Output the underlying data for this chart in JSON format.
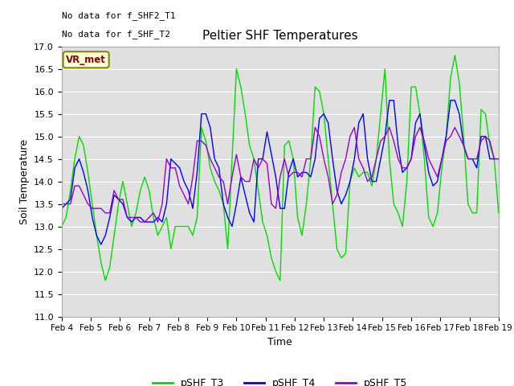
{
  "title": "Peltier SHF Temperatures",
  "xlabel": "Time",
  "ylabel": "Soil Temperature",
  "ylim": [
    11.0,
    17.0
  ],
  "yticks": [
    11.0,
    11.5,
    12.0,
    12.5,
    13.0,
    13.5,
    14.0,
    14.5,
    15.0,
    15.5,
    16.0,
    16.5,
    17.0
  ],
  "xtick_labels": [
    "Feb 4",
    "Feb 5",
    "Feb 6",
    "Feb 7",
    "Feb 8",
    "Feb 9",
    "Feb 10",
    "Feb 11",
    "Feb 12",
    "Feb 13",
    "Feb 14",
    "Feb 15",
    "Feb 16",
    "Feb 17",
    "Feb 18",
    "Feb 19"
  ],
  "no_data_text1": "No data for f_SHF2_T1",
  "no_data_text2": "No data for f_SHF_T2",
  "vr_met_label": "VR_met",
  "legend_labels": [
    "pSHF_T3",
    "pSHF_T4",
    "pSHF_T5"
  ],
  "T3_color": "#00dd00",
  "T4_color": "#0000ff",
  "T5_color": "#9900cc",
  "fig_facecolor": "#ffffff",
  "ax_facecolor": "#e0e0e0",
  "grid_color": "#ffffff",
  "T3_x": [
    0,
    0.15,
    0.3,
    0.45,
    0.6,
    0.75,
    0.9,
    1.05,
    1.2,
    1.35,
    1.5,
    1.65,
    1.8,
    1.95,
    2.1,
    2.25,
    2.4,
    2.55,
    2.7,
    2.85,
    3.0,
    3.15,
    3.3,
    3.45,
    3.6,
    3.75,
    3.9,
    4.05,
    4.2,
    4.35,
    4.5,
    4.65,
    4.8,
    4.95,
    5.1,
    5.25,
    5.4,
    5.55,
    5.7,
    5.85,
    6.0,
    6.15,
    6.3,
    6.45,
    6.6,
    6.75,
    6.9,
    7.05,
    7.2,
    7.35,
    7.5,
    7.65,
    7.8,
    7.95,
    8.1,
    8.25,
    8.4,
    8.55,
    8.7,
    8.85,
    9.0,
    9.15,
    9.3,
    9.45,
    9.6,
    9.75,
    9.9,
    10.05,
    10.2,
    10.35,
    10.5,
    10.65,
    10.8,
    10.95,
    11.1,
    11.25,
    11.4,
    11.55,
    11.7,
    11.85,
    12.0,
    12.15,
    12.3,
    12.45,
    12.6,
    12.75,
    12.9,
    13.05,
    13.2,
    13.35,
    13.5,
    13.65,
    13.8,
    13.95,
    14.1,
    14.25,
    14.4,
    14.55,
    14.7,
    14.85,
    15.0
  ],
  "T3_y": [
    13.0,
    13.2,
    13.8,
    14.5,
    15.0,
    14.8,
    14.2,
    13.5,
    12.8,
    12.2,
    11.8,
    12.1,
    12.8,
    13.5,
    14.0,
    13.5,
    13.0,
    13.3,
    13.8,
    14.1,
    13.8,
    13.2,
    12.8,
    13.0,
    13.2,
    12.5,
    13.0,
    13.0,
    13.0,
    13.0,
    12.8,
    13.2,
    15.2,
    14.9,
    14.3,
    14.0,
    13.8,
    13.5,
    12.5,
    14.5,
    16.5,
    16.1,
    15.5,
    14.8,
    14.5,
    13.8,
    13.1,
    12.8,
    12.3,
    12.0,
    11.8,
    14.8,
    14.9,
    14.5,
    13.2,
    12.8,
    13.5,
    14.5,
    16.1,
    16.0,
    15.5,
    14.5,
    13.5,
    12.5,
    12.3,
    12.4,
    14.0,
    14.3,
    14.1,
    14.2,
    14.2,
    13.9,
    14.5,
    15.5,
    16.5,
    14.5,
    13.5,
    13.3,
    13.0,
    14.0,
    16.1,
    16.1,
    15.5,
    14.5,
    13.2,
    13.0,
    13.3,
    14.3,
    15.0,
    16.3,
    16.8,
    16.2,
    15.0,
    13.5,
    13.3,
    13.3,
    15.6,
    15.5,
    14.8,
    14.5,
    13.3
  ],
  "T4_x": [
    0,
    0.15,
    0.3,
    0.45,
    0.6,
    0.75,
    0.9,
    1.05,
    1.2,
    1.35,
    1.5,
    1.65,
    1.8,
    1.95,
    2.1,
    2.25,
    2.4,
    2.55,
    2.7,
    2.85,
    3.0,
    3.15,
    3.3,
    3.45,
    3.6,
    3.75,
    3.9,
    4.05,
    4.2,
    4.35,
    4.5,
    4.65,
    4.8,
    4.95,
    5.1,
    5.25,
    5.4,
    5.55,
    5.7,
    5.85,
    6.0,
    6.15,
    6.3,
    6.45,
    6.6,
    6.75,
    6.9,
    7.05,
    7.2,
    7.35,
    7.5,
    7.65,
    7.8,
    7.95,
    8.1,
    8.25,
    8.4,
    8.55,
    8.7,
    8.85,
    9.0,
    9.15,
    9.3,
    9.45,
    9.6,
    9.75,
    9.9,
    10.05,
    10.2,
    10.35,
    10.5,
    10.65,
    10.8,
    10.95,
    11.1,
    11.25,
    11.4,
    11.55,
    11.7,
    11.85,
    12.0,
    12.15,
    12.3,
    12.45,
    12.6,
    12.75,
    12.9,
    13.05,
    13.2,
    13.35,
    13.5,
    13.65,
    13.8,
    13.95,
    14.1,
    14.25,
    14.4,
    14.55,
    14.7,
    14.85,
    15.0
  ],
  "T4_y": [
    13.4,
    13.5,
    13.6,
    14.3,
    14.5,
    14.2,
    13.8,
    13.2,
    12.8,
    12.6,
    12.8,
    13.2,
    13.7,
    13.6,
    13.5,
    13.2,
    13.1,
    13.2,
    13.2,
    13.1,
    13.1,
    13.1,
    13.2,
    13.1,
    13.5,
    14.5,
    14.4,
    14.3,
    14.0,
    13.8,
    13.4,
    14.2,
    15.5,
    15.5,
    15.2,
    14.5,
    14.3,
    13.5,
    13.2,
    13.0,
    13.5,
    14.1,
    13.7,
    13.3,
    13.1,
    14.5,
    14.5,
    15.1,
    14.6,
    14.1,
    13.4,
    13.4,
    14.2,
    14.5,
    14.1,
    14.2,
    14.2,
    14.1,
    14.5,
    15.4,
    15.5,
    15.3,
    14.5,
    13.8,
    13.5,
    13.7,
    14.0,
    14.5,
    15.3,
    15.5,
    14.5,
    14.0,
    14.0,
    14.5,
    15.0,
    15.8,
    15.8,
    14.8,
    14.2,
    14.3,
    14.5,
    15.3,
    15.5,
    14.8,
    14.2,
    13.9,
    14.0,
    14.5,
    15.0,
    15.8,
    15.8,
    15.5,
    14.8,
    14.5,
    14.5,
    14.3,
    15.0,
    15.0,
    14.5,
    14.5,
    14.5
  ],
  "T5_x": [
    0,
    0.15,
    0.3,
    0.45,
    0.6,
    0.75,
    0.9,
    1.05,
    1.2,
    1.35,
    1.5,
    1.65,
    1.8,
    1.95,
    2.1,
    2.25,
    2.4,
    2.55,
    2.7,
    2.85,
    3.0,
    3.15,
    3.3,
    3.45,
    3.6,
    3.75,
    3.9,
    4.05,
    4.2,
    4.35,
    4.5,
    4.65,
    4.8,
    4.95,
    5.1,
    5.25,
    5.4,
    5.55,
    5.7,
    5.85,
    6.0,
    6.15,
    6.3,
    6.45,
    6.6,
    6.75,
    6.9,
    7.05,
    7.2,
    7.35,
    7.5,
    7.65,
    7.8,
    7.95,
    8.1,
    8.25,
    8.4,
    8.55,
    8.7,
    8.85,
    9.0,
    9.15,
    9.3,
    9.45,
    9.6,
    9.75,
    9.9,
    10.05,
    10.2,
    10.35,
    10.5,
    10.65,
    10.8,
    10.95,
    11.1,
    11.25,
    11.4,
    11.55,
    11.7,
    11.85,
    12.0,
    12.15,
    12.3,
    12.45,
    12.6,
    12.75,
    12.9,
    13.05,
    13.2,
    13.35,
    13.5,
    13.65,
    13.8,
    13.95,
    14.1,
    14.25,
    14.4,
    14.55,
    14.7,
    14.85,
    15.0
  ],
  "T5_y": [
    13.5,
    13.5,
    13.5,
    13.9,
    13.9,
    13.7,
    13.5,
    13.4,
    13.4,
    13.4,
    13.3,
    13.3,
    13.8,
    13.6,
    13.6,
    13.2,
    13.2,
    13.2,
    13.1,
    13.1,
    13.2,
    13.3,
    13.1,
    13.5,
    14.5,
    14.3,
    14.3,
    13.9,
    13.7,
    13.5,
    14.1,
    14.9,
    14.9,
    14.8,
    14.5,
    14.3,
    14.1,
    14.0,
    13.5,
    14.1,
    14.6,
    14.1,
    14.0,
    14.0,
    14.5,
    14.3,
    14.5,
    14.4,
    13.5,
    13.4,
    14.1,
    14.5,
    14.1,
    14.2,
    14.2,
    14.1,
    14.5,
    14.5,
    15.2,
    15.0,
    14.5,
    14.1,
    13.5,
    13.7,
    14.2,
    14.5,
    15.0,
    15.2,
    14.5,
    14.3,
    14.0,
    14.1,
    14.5,
    14.9,
    15.0,
    15.2,
    14.9,
    14.5,
    14.3,
    14.3,
    14.5,
    15.0,
    15.2,
    14.9,
    14.5,
    14.3,
    14.1,
    14.5,
    14.9,
    15.0,
    15.2,
    15.0,
    14.8,
    14.5,
    14.5,
    14.5,
    14.9,
    15.0,
    14.9,
    14.5,
    14.5
  ]
}
